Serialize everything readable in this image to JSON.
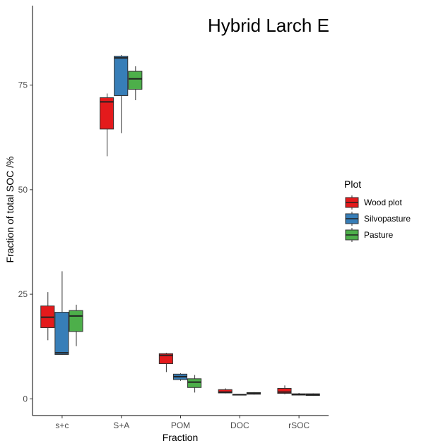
{
  "chart_data": {
    "type": "boxplot",
    "title": "Hybrid Larch E",
    "xlabel": "Fraction",
    "ylabel": "Fraction of total SOC /%",
    "ylim": [
      -4,
      94
    ],
    "yticks": [
      0,
      25,
      50,
      75
    ],
    "categories": [
      "s+c",
      "S+A",
      "POM",
      "DOC",
      "rSOC"
    ],
    "legend": {
      "title": "Plot",
      "position": "right"
    },
    "series": [
      {
        "name": "Wood plot",
        "color": "#e41a1c",
        "boxes": [
          {
            "min": 14,
            "q1": 17,
            "median": 19.5,
            "q3": 22.2,
            "max": 25.5
          },
          {
            "min": 58,
            "q1": 64.5,
            "median": 71,
            "q3": 72,
            "max": 73
          },
          {
            "min": 6.4,
            "q1": 8.4,
            "median": 10.4,
            "q3": 10.8,
            "max": 11
          },
          {
            "min": 1.3,
            "q1": 1.4,
            "median": 1.6,
            "q3": 2.2,
            "max": 2.5
          },
          {
            "min": 1.1,
            "q1": 1.3,
            "median": 1.6,
            "q3": 2.5,
            "max": 3.2
          }
        ]
      },
      {
        "name": "Silvopasture",
        "color": "#377eb8",
        "boxes": [
          {
            "min": 10.5,
            "q1": 10.6,
            "median": 11,
            "q3": 20.7,
            "max": 30.5
          },
          {
            "min": 63.5,
            "q1": 72.5,
            "median": 81.5,
            "q3": 81.9,
            "max": 82.2
          },
          {
            "min": 4.3,
            "q1": 4.6,
            "median": 5.3,
            "q3": 5.9,
            "max": 6.1
          },
          {
            "min": 0.9,
            "q1": 1.0,
            "median": 1.0,
            "q3": 1.05,
            "max": 1.1
          },
          {
            "min": 0.8,
            "q1": 0.9,
            "median": 1.0,
            "q3": 1.2,
            "max": 1.4
          }
        ]
      },
      {
        "name": "Pasture",
        "color": "#4daf4a",
        "boxes": [
          {
            "min": 12.6,
            "q1": 16.1,
            "median": 19.8,
            "q3": 21.1,
            "max": 22.5
          },
          {
            "min": 71.4,
            "q1": 74,
            "median": 76.5,
            "q3": 78.3,
            "max": 79.5
          },
          {
            "min": 1.5,
            "q1": 2.7,
            "median": 4.0,
            "q3": 4.8,
            "max": 5.7
          },
          {
            "min": 1.0,
            "q1": 1.1,
            "median": 1.3,
            "q3": 1.5,
            "max": 1.6
          },
          {
            "min": 0.7,
            "q1": 0.8,
            "median": 1.0,
            "q3": 1.2,
            "max": 1.3
          }
        ]
      }
    ]
  }
}
